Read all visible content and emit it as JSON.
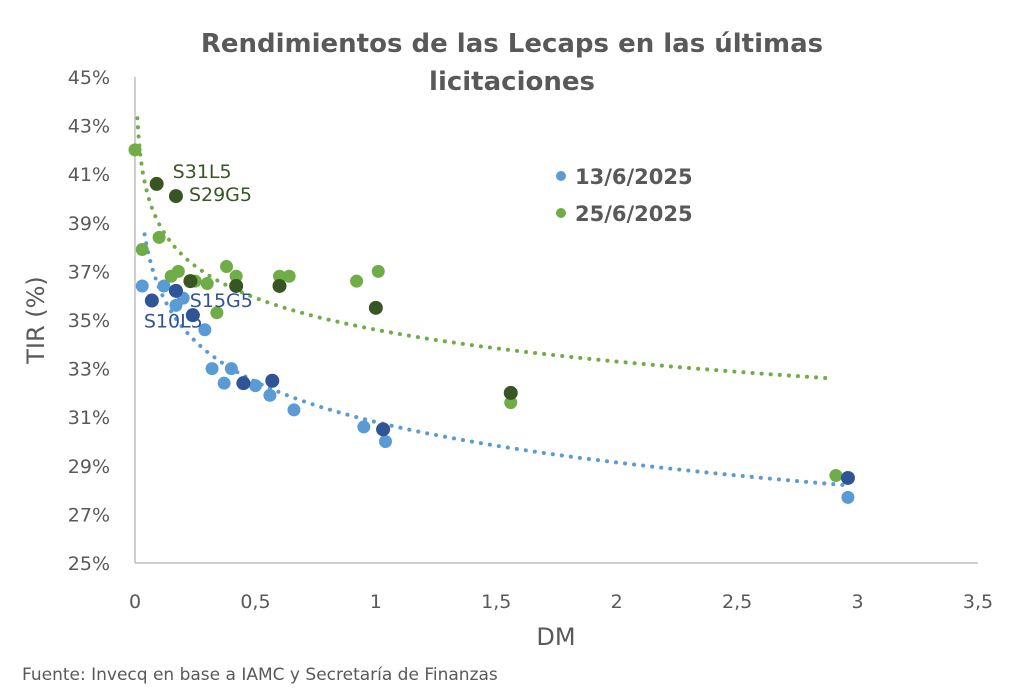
{
  "chart_data": {
    "type": "scatter",
    "title": "Rendimientos de las Lecaps en las últimas licitaciones",
    "title_lines": [
      "Rendimientos de las Lecaps en las últimas",
      "licitaciones"
    ],
    "xlabel": "DM",
    "ylabel": "TIR (%)",
    "xlim": [
      0,
      3.5
    ],
    "ylim": [
      25,
      45
    ],
    "x_ticks": [
      0,
      0.5,
      1,
      1.5,
      2,
      2.5,
      3,
      3.5
    ],
    "x_tick_labels": [
      "0",
      "0,5",
      "1",
      "1,5",
      "2",
      "2,5",
      "3",
      "3,5"
    ],
    "y_ticks": [
      25,
      27,
      29,
      31,
      33,
      35,
      37,
      39,
      41,
      43,
      45
    ],
    "y_tick_labels": [
      "25%",
      "27%",
      "29%",
      "31%",
      "33%",
      "35%",
      "37%",
      "39%",
      "41%",
      "43%",
      "45%"
    ],
    "grid": false,
    "legend_position": "top-right",
    "series": [
      {
        "name": "13/6/2025",
        "color": "#5b9bd5",
        "highlight_color": "#2f5597",
        "points": [
          {
            "x": 0.03,
            "y": 36.4
          },
          {
            "x": 0.12,
            "y": 36.4
          },
          {
            "x": 0.17,
            "y": 35.6
          },
          {
            "x": 0.2,
            "y": 35.9
          },
          {
            "x": 0.29,
            "y": 34.6
          },
          {
            "x": 0.32,
            "y": 33.0
          },
          {
            "x": 0.4,
            "y": 33.0
          },
          {
            "x": 0.37,
            "y": 32.4
          },
          {
            "x": 0.5,
            "y": 32.3
          },
          {
            "x": 0.56,
            "y": 31.9
          },
          {
            "x": 0.66,
            "y": 31.3
          },
          {
            "x": 0.95,
            "y": 30.6
          },
          {
            "x": 1.04,
            "y": 30.0
          },
          {
            "x": 2.96,
            "y": 27.7
          }
        ],
        "highlighted": [
          {
            "x": 0.07,
            "y": 35.8,
            "label": "S10L5"
          },
          {
            "x": 0.17,
            "y": 36.2,
            "label": ""
          },
          {
            "x": 0.24,
            "y": 35.2,
            "label": "S15G5"
          },
          {
            "x": 0.45,
            "y": 32.4,
            "label": ""
          },
          {
            "x": 0.57,
            "y": 32.5,
            "label": ""
          },
          {
            "x": 1.03,
            "y": 30.5,
            "label": ""
          },
          {
            "x": 2.96,
            "y": 28.5,
            "label": ""
          }
        ],
        "trendline": {
          "type": "log",
          "a": 30.8,
          "b": -2.4,
          "x_range": [
            0.04,
            2.96
          ]
        }
      },
      {
        "name": "25/6/2025",
        "color": "#70ad47",
        "highlight_color": "#375623",
        "points": [
          {
            "x": 0.0,
            "y": 42.0
          },
          {
            "x": 0.03,
            "y": 37.9
          },
          {
            "x": 0.1,
            "y": 38.4
          },
          {
            "x": 0.15,
            "y": 36.8
          },
          {
            "x": 0.18,
            "y": 37.0
          },
          {
            "x": 0.25,
            "y": 36.6
          },
          {
            "x": 0.3,
            "y": 36.5
          },
          {
            "x": 0.34,
            "y": 35.3
          },
          {
            "x": 0.38,
            "y": 37.2
          },
          {
            "x": 0.42,
            "y": 36.8
          },
          {
            "x": 0.6,
            "y": 36.8
          },
          {
            "x": 0.64,
            "y": 36.8
          },
          {
            "x": 0.92,
            "y": 36.6
          },
          {
            "x": 1.01,
            "y": 37.0
          },
          {
            "x": 1.56,
            "y": 31.6
          },
          {
            "x": 2.91,
            "y": 28.6
          }
        ],
        "highlighted": [
          {
            "x": 0.09,
            "y": 40.6,
            "label": "S31L5"
          },
          {
            "x": 0.17,
            "y": 40.1,
            "label": "S29G5"
          },
          {
            "x": 0.23,
            "y": 36.6,
            "label": ""
          },
          {
            "x": 0.42,
            "y": 36.4,
            "label": ""
          },
          {
            "x": 0.6,
            "y": 36.4,
            "label": ""
          },
          {
            "x": 1.0,
            "y": 35.5,
            "label": ""
          },
          {
            "x": 1.56,
            "y": 32.0,
            "label": ""
          }
        ],
        "trendline": {
          "type": "log",
          "a": 34.6,
          "b": -1.89,
          "x_range": [
            0.01,
            2.9
          ]
        }
      }
    ],
    "source": "Fuente: Invecq en base a IAMC y Secretaría de Finanzas"
  }
}
